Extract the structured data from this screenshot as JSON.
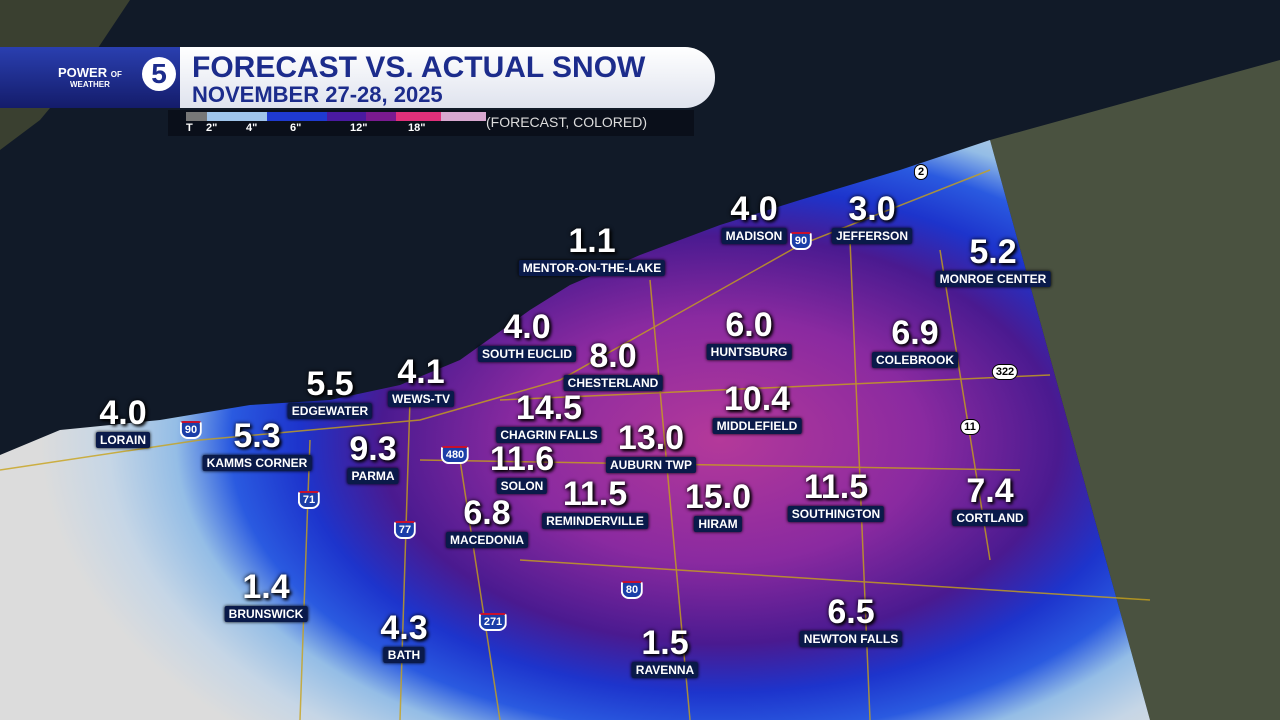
{
  "header": {
    "logo_top": "POWER",
    "logo_of": "OF",
    "logo_number": "5",
    "logo_bottom": "WEATHER",
    "title": "FORECAST VS. ACTUAL SNOW",
    "subtitle": "NOVEMBER 27-28, 2025"
  },
  "legend": {
    "labels": [
      "T",
      "2\"",
      "4\"",
      "6\"",
      "12\"",
      "18\""
    ],
    "note": "(FORECAST, COLORED)"
  },
  "locations": [
    {
      "value": "4.0",
      "name": "LORAIN"
    },
    {
      "value": "5.3",
      "name": "KAMMS CORNER"
    },
    {
      "value": "9.3",
      "name": "PARMA"
    },
    {
      "value": "5.5",
      "name": "EDGEWATER"
    },
    {
      "value": "4.1",
      "name": "WEWS-TV"
    },
    {
      "value": "4.0",
      "name": "SOUTH EUCLID"
    },
    {
      "value": "1.1",
      "name": "MENTOR-ON-THE-LAKE"
    },
    {
      "value": "4.0",
      "name": "MADISON"
    },
    {
      "value": "3.0",
      "name": "JEFFERSON"
    },
    {
      "value": "5.2",
      "name": "MONROE CENTER"
    },
    {
      "value": "6.0",
      "name": "HUNTSBURG"
    },
    {
      "value": "6.9",
      "name": "COLEBROOK"
    },
    {
      "value": "8.0",
      "name": "CHESTERLAND"
    },
    {
      "value": "14.5",
      "name": "CHAGRIN FALLS"
    },
    {
      "value": "10.4",
      "name": "MIDDLEFIELD"
    },
    {
      "value": "13.0",
      "name": "AUBURN TWP"
    },
    {
      "value": "11.6",
      "name": "SOLON"
    },
    {
      "value": "11.5",
      "name": "REMINDERVILLE"
    },
    {
      "value": "15.0",
      "name": "HIRAM"
    },
    {
      "value": "11.5",
      "name": "SOUTHINGTON"
    },
    {
      "value": "7.4",
      "name": "CORTLAND"
    },
    {
      "value": "6.8",
      "name": "MACEDONIA"
    },
    {
      "value": "1.4",
      "name": "BRUNSWICK"
    },
    {
      "value": "4.3",
      "name": "BATH"
    },
    {
      "value": "1.5",
      "name": "RAVENNA"
    },
    {
      "value": "6.5",
      "name": "NEWTON FALLS"
    }
  ],
  "highways": [
    "90",
    "90",
    "480",
    "71",
    "77",
    "271",
    "80",
    "2",
    "322",
    "11"
  ]
}
